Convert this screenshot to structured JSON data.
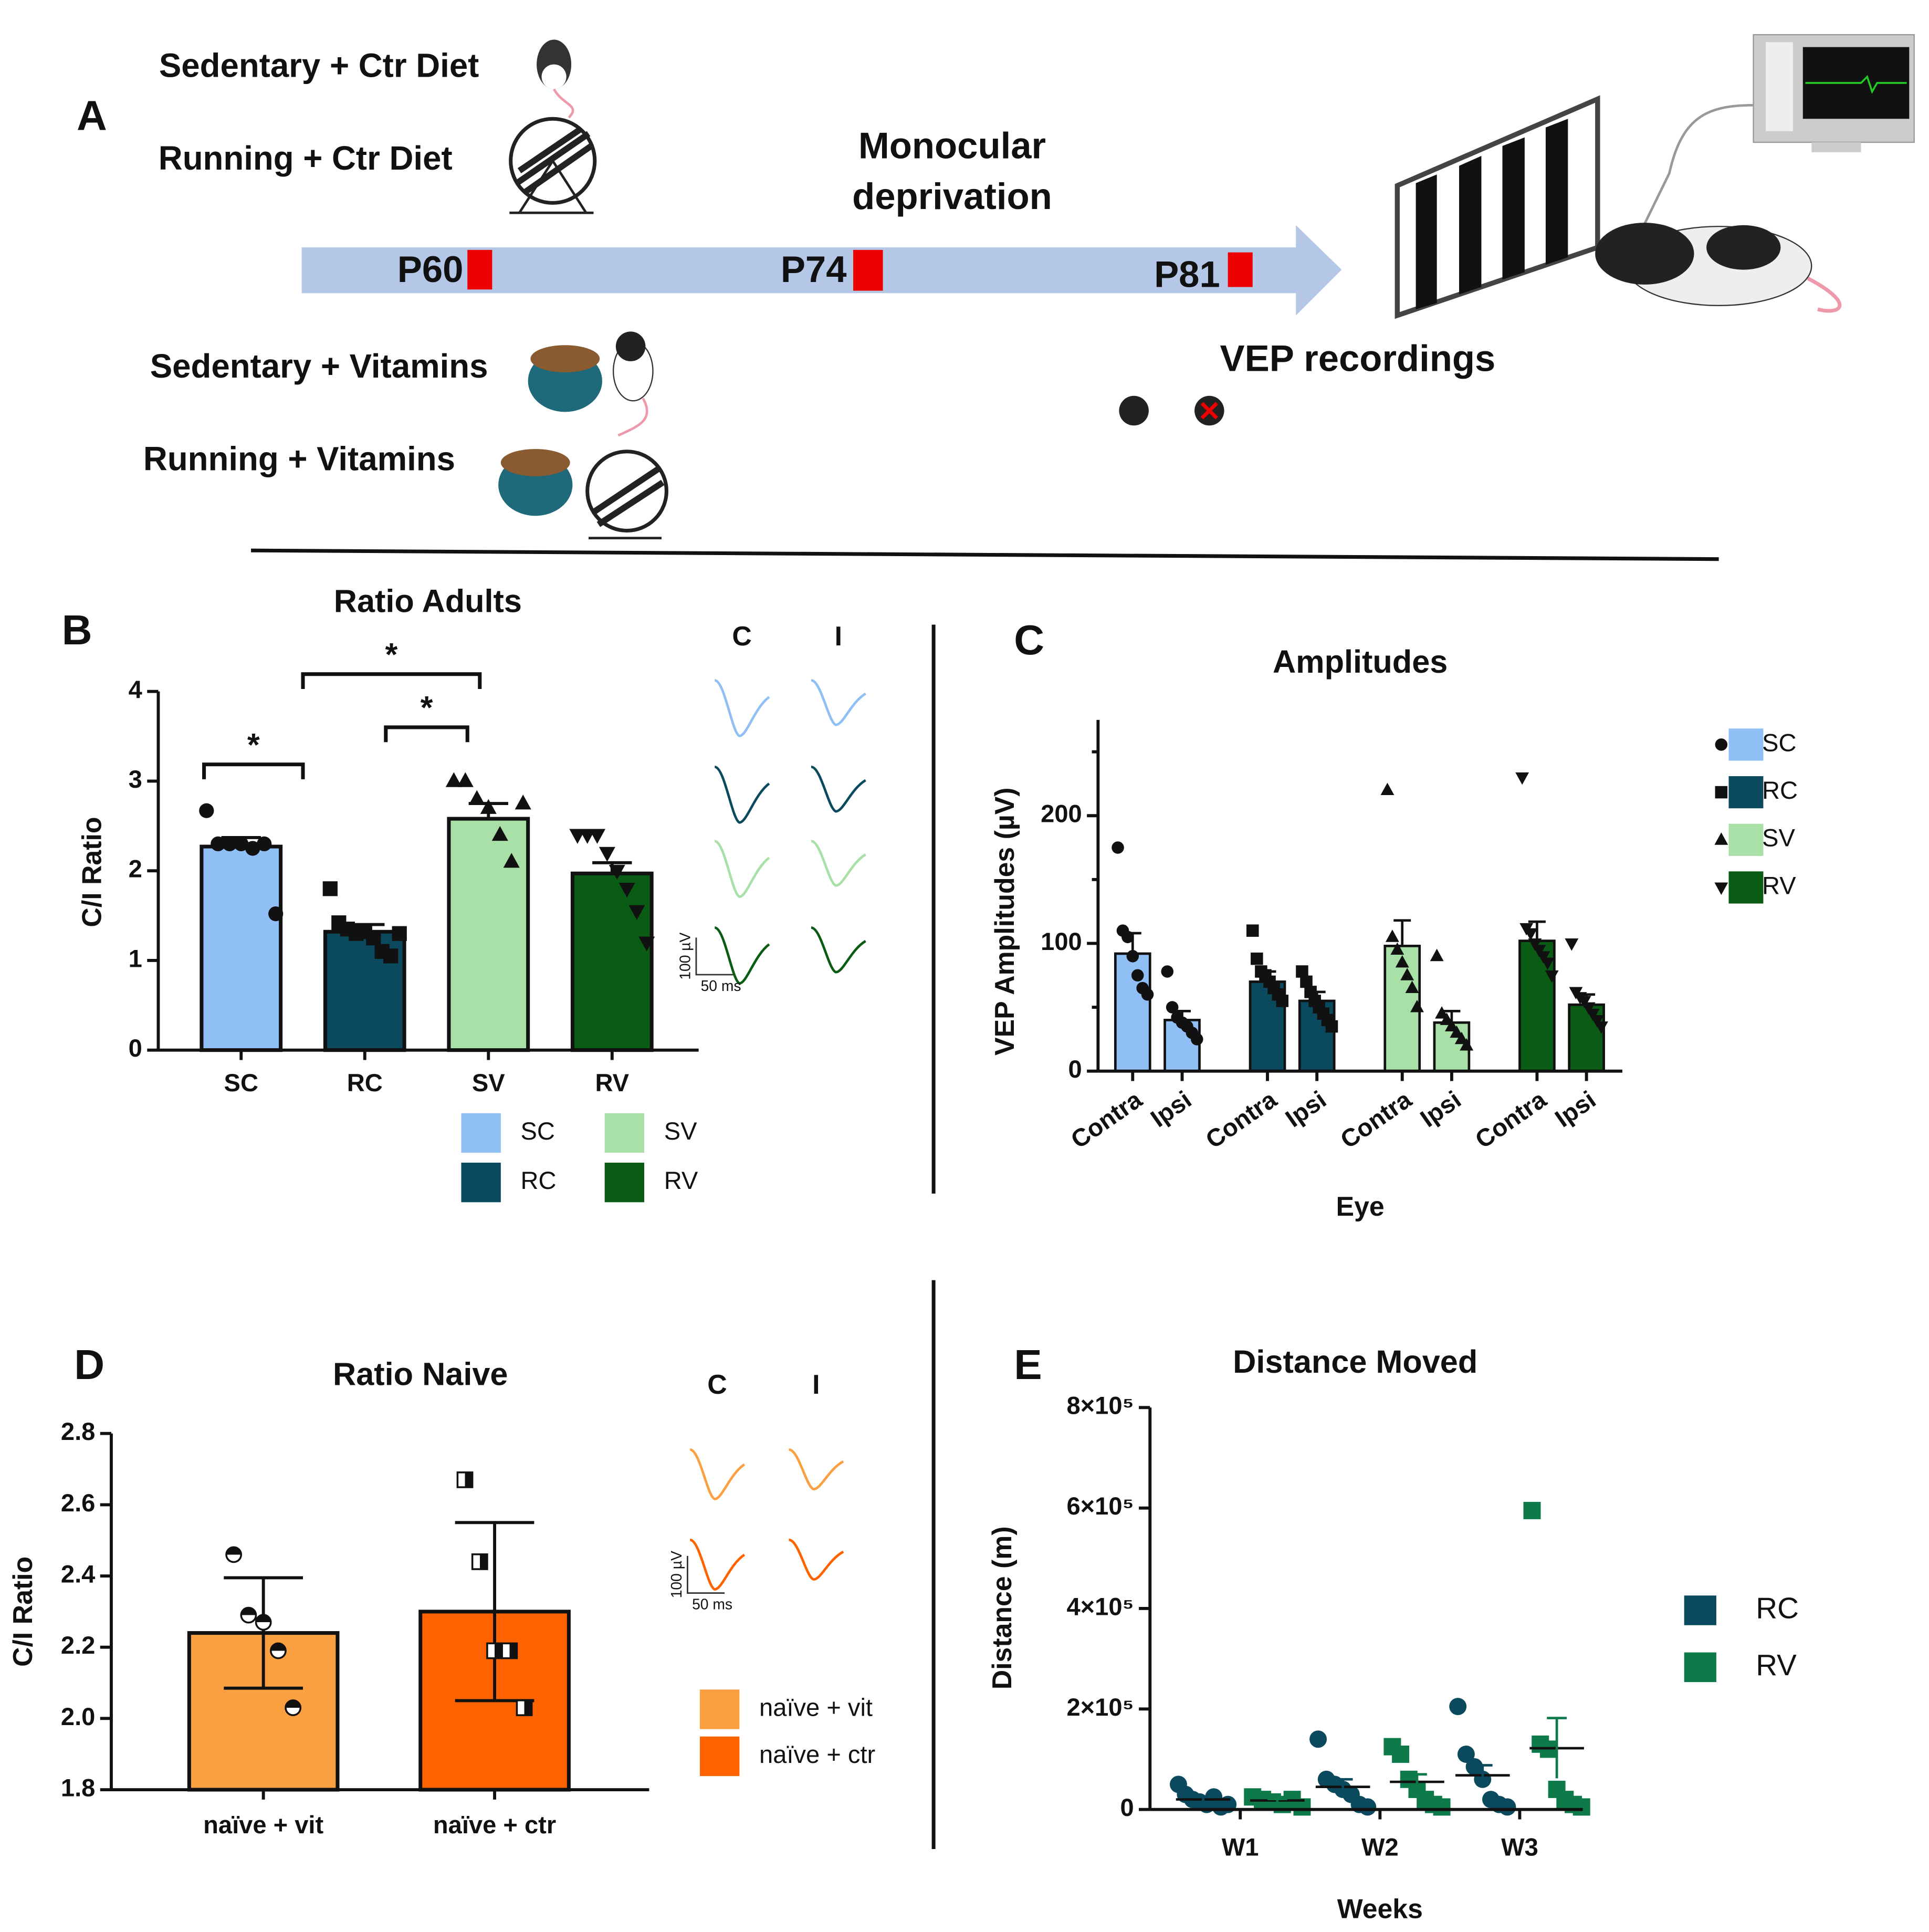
{
  "panel_a": {
    "label": "A",
    "groups": [
      "Sedentary + Ctr Diet",
      "Running + Ctr Diet",
      "Sedentary + Vitamins",
      "Running + Vitamins"
    ],
    "event": [
      "Monocular",
      "deprivation"
    ],
    "timepoints": [
      "P60",
      "P74",
      "P81"
    ],
    "recording": "VEP recordings"
  },
  "chart_data": [
    {
      "type": "bar",
      "panel": "B",
      "title": "Ratio Adults",
      "ylabel": "C/I Ratio",
      "categories": [
        "SC",
        "RC",
        "SV",
        "RV"
      ],
      "values": [
        2.27,
        1.32,
        2.58,
        1.97
      ],
      "errors": [
        0.1,
        0.08,
        0.17,
        0.12
      ],
      "error_style": "up",
      "colors": [
        "#8fbff5",
        "#0b4a5e",
        "#a8e0a8",
        "#0a5c14"
      ],
      "markers": [
        "circle",
        "square",
        "triangle",
        "triangle-down"
      ],
      "points": [
        [
          2.67,
          2.3,
          2.3,
          2.3,
          2.25,
          2.3,
          1.52
        ],
        [
          1.8,
          1.42,
          1.35,
          1.3,
          1.32,
          1.25,
          1.1,
          1.05,
          1.3
        ],
        [
          3.0,
          3.0,
          2.8,
          2.7,
          2.4,
          2.1,
          2.75
        ],
        [
          2.4,
          2.4,
          2.4,
          2.2,
          2.0,
          1.8,
          1.55,
          1.2
        ]
      ],
      "ylim": [
        0,
        4
      ],
      "yticks": [
        0,
        1,
        2,
        3,
        4
      ],
      "annotations": [
        "*",
        "*",
        "*"
      ],
      "traces": {
        "columns": [
          "C",
          "I"
        ],
        "scale_y": "100 µV",
        "scale_x": "50 ms"
      }
    },
    {
      "type": "grouped-bar",
      "panel": "C",
      "title": "Amplitudes",
      "xlabel": "Eye",
      "ylabel": "VEP Amplitudes (µV)",
      "categories": [
        "Contra",
        "Ipsi"
      ],
      "series": [
        {
          "name": "SC",
          "color": "#8fbff5",
          "marker": "circle",
          "values": [
            92,
            40
          ],
          "errors": [
            16,
            7
          ],
          "points": [
            [
              175,
              110,
              105,
              90,
              75,
              65,
              60
            ],
            [
              78,
              50,
              42,
              38,
              35,
              30,
              25
            ]
          ]
        },
        {
          "name": "RC",
          "color": "#0b4a5e",
          "marker": "square",
          "values": [
            70,
            55
          ],
          "errors": [
            8,
            7
          ],
          "points": [
            [
              110,
              88,
              78,
              75,
              70,
              65,
              60,
              55
            ],
            [
              78,
              70,
              62,
              55,
              50,
              45,
              40,
              35
            ]
          ]
        },
        {
          "name": "SV",
          "color": "#a8e0a8",
          "marker": "triangle",
          "values": [
            98,
            38
          ],
          "errors": [
            20,
            9
          ],
          "points": [
            [
              220,
              105,
              95,
              85,
              75,
              65,
              50
            ],
            [
              90,
              45,
              40,
              35,
              30,
              25,
              20
            ]
          ]
        },
        {
          "name": "RV",
          "color": "#0a5c14",
          "marker": "triangle-down",
          "values": [
            102,
            52
          ],
          "errors": [
            15,
            8
          ],
          "points": [
            [
              230,
              112,
              108,
              100,
              95,
              90,
              85,
              75
            ],
            [
              100,
              62,
              58,
              55,
              50,
              45,
              40,
              35
            ]
          ]
        }
      ],
      "ylim": [
        0,
        275
      ],
      "yticks": [
        0,
        100,
        200
      ],
      "yminor": [
        50,
        150,
        250
      ]
    },
    {
      "type": "bar",
      "panel": "D",
      "title": "Ratio Naive",
      "ylabel": "C/I Ratio",
      "categories": [
        "naïve + vit",
        "naïve + ctr"
      ],
      "values": [
        2.24,
        2.3
      ],
      "errors": [
        0.155,
        0.25
      ],
      "error_style": "both",
      "colors": [
        "#fba040",
        "#ff6300"
      ],
      "markers": [
        "half-circle",
        "half-square"
      ],
      "points": [
        [
          2.46,
          2.29,
          2.27,
          2.19,
          2.03
        ],
        [
          2.67,
          2.44,
          2.19,
          2.19,
          2.03
        ]
      ],
      "ylim": [
        1.8,
        2.8
      ],
      "yticks": [
        1.8,
        {
          "value": 2,
          "label": "2.0"
        },
        2.2,
        2.4,
        2.6,
        2.8
      ],
      "traces": {
        "columns": [
          "C",
          "I"
        ],
        "scale_y": "100 µV",
        "scale_x": "50 ms"
      }
    },
    {
      "type": "dot",
      "panel": "E",
      "title": "Distance Moved",
      "xlabel": "Weeks",
      "ylabel": "Distance (m)",
      "categories": [
        "W1",
        "W2",
        "W3"
      ],
      "series": [
        {
          "name": "RC",
          "color": "#0b4a5e",
          "marker": "circle",
          "values": [
            20000,
            45000,
            68000
          ],
          "errors": [
            5000,
            15000,
            20000
          ],
          "points": [
            [
              50000,
              30000,
              20000,
              15000,
              10000,
              25000,
              5000,
              10000
            ],
            [
              140000,
              60000,
              50000,
              40000,
              30000,
              10000,
              5000
            ],
            [
              205000,
              110000,
              85000,
              60000,
              20000,
              10000,
              5000
            ]
          ]
        },
        {
          "name": "RV",
          "color": "#0e7a4a",
          "marker": "square",
          "values": [
            18000,
            55000,
            122000
          ],
          "errors": [
            3000,
            15000,
            60000
          ],
          "points": [
            [
              25000,
              20000,
              15000,
              10000,
              20000,
              5000
            ],
            [
              125000,
              110000,
              60000,
              40000,
              20000,
              10000,
              5000
            ],
            [
              595000,
              130000,
              120000,
              40000,
              20000,
              10000,
              5000
            ]
          ]
        }
      ],
      "ylim": [
        0,
        800000
      ],
      "yticks": [
        0,
        {
          "value": 200000,
          "label": "2×10⁵"
        },
        {
          "value": 400000,
          "label": "4×10⁵"
        },
        {
          "value": 600000,
          "label": "6×10⁵"
        },
        {
          "value": 800000,
          "label": "8×10⁵"
        }
      ]
    }
  ]
}
